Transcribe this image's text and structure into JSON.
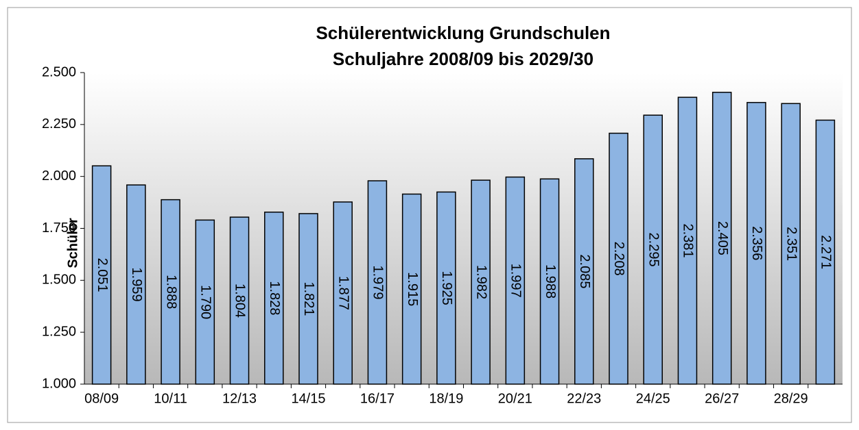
{
  "chart_data": {
    "type": "bar",
    "title": "Schülerentwicklung Grundschulen",
    "subtitle": "Schuljahre 2008/09 bis 2029/30",
    "y_label": "Schüler",
    "categories": [
      "08/09",
      null,
      "10/11",
      null,
      "12/13",
      null,
      "14/15",
      null,
      "16/17",
      null,
      "18/19",
      null,
      "20/21",
      null,
      "22/23",
      null,
      "24/25",
      null,
      "26/27",
      null,
      "28/29",
      null
    ],
    "values": [
      2051,
      1959,
      1888,
      1790,
      1804,
      1828,
      1821,
      1877,
      1979,
      1915,
      1925,
      1982,
      1997,
      1988,
      2085,
      2208,
      2295,
      2381,
      2405,
      2356,
      2351,
      2271
    ],
    "value_labels": [
      "2.051",
      "1.959",
      "1.888",
      "1.790",
      "1.804",
      "1.828",
      "1.821",
      "1.877",
      "1.979",
      "1.915",
      "1.925",
      "1.982",
      "1.997",
      "1.988",
      "2.085",
      "2.208",
      "2.295",
      "2.381",
      "2.405",
      "2.356",
      "2.351",
      "2.271"
    ],
    "color": "#8db4e2",
    "ylim": [
      1000,
      2500
    ],
    "yticks": [
      {
        "value": 1000,
        "label": "1.000"
      },
      {
        "value": 1250,
        "label": "1.250"
      },
      {
        "value": 1500,
        "label": "1.500"
      },
      {
        "value": 1750,
        "label": "1.750"
      },
      {
        "value": 2000,
        "label": "2.000"
      },
      {
        "value": 2250,
        "label": "2.250"
      },
      {
        "value": 2500,
        "label": "2.500"
      }
    ]
  }
}
